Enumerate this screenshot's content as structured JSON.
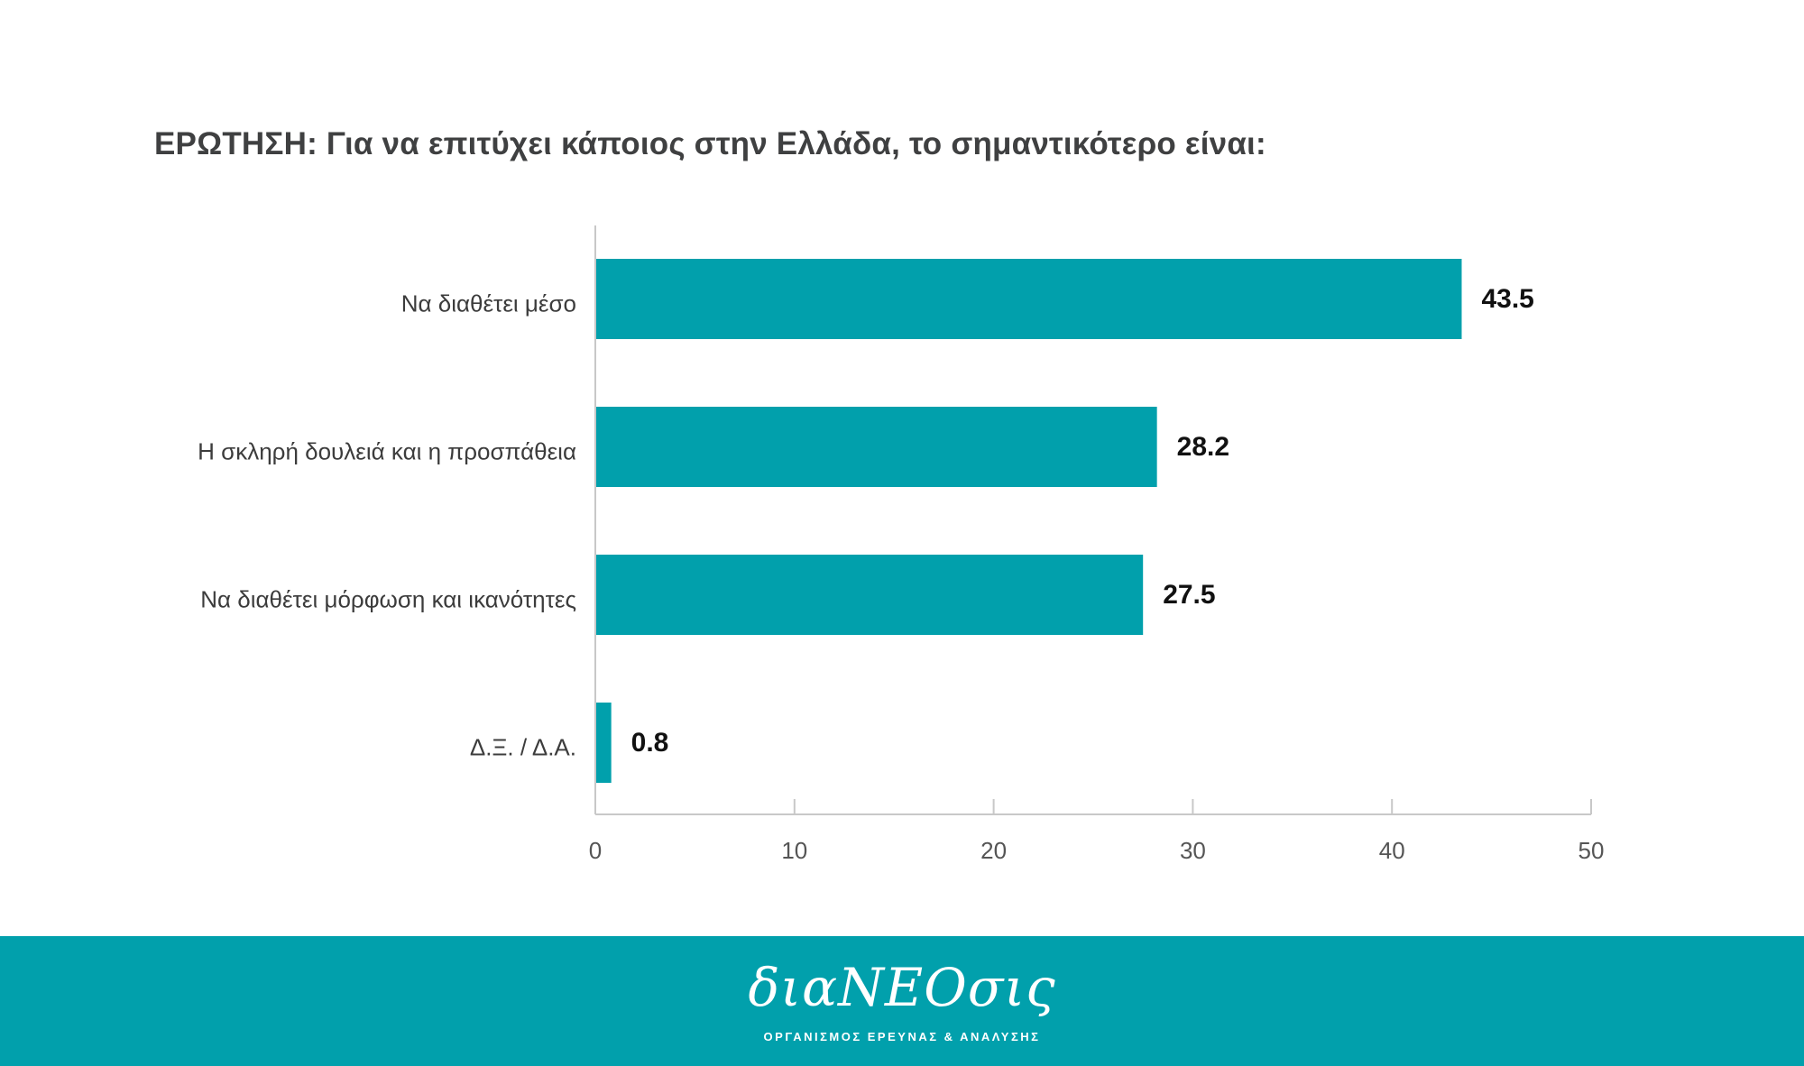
{
  "header": {
    "title": "ΕΡΩΤΗΣΗ: Για να επιτύχει κάποιος στην Ελλάδα, το σημαντικότερο είναι:"
  },
  "chart_data": {
    "type": "bar",
    "orientation": "horizontal",
    "title": "ΕΡΩΤΗΣΗ: Για να επιτύχει κάποιος στην Ελλάδα, το σημαντικότερο είναι:",
    "categories": [
      "Να διαθέτει μέσο",
      "Η σκληρή δουλειά και η προσπάθεια",
      "Να διαθέτει μόρφωση και ικανότητες",
      "Δ.Ξ. / Δ.Α."
    ],
    "values": [
      43.5,
      28.2,
      27.5,
      0.8
    ],
    "value_labels": [
      "43.5",
      "28.2",
      "27.5",
      "0.8"
    ],
    "xlim": [
      0,
      50
    ],
    "ticks": [
      "0",
      "10",
      "20",
      "30",
      "40",
      "50"
    ],
    "xlabel": "",
    "ylabel": "",
    "grid": false,
    "legend": "none",
    "bar_color": "#01a0ac"
  },
  "footer": {
    "logo_text": "διαΝΕΟσις",
    "tagline": "ΟΡΓΑΝΙΣΜΟΣ ΕΡΕΥΝΑΣ & ΑΝΑΛΥΣΗΣ",
    "background_color": "#01a0ac"
  }
}
